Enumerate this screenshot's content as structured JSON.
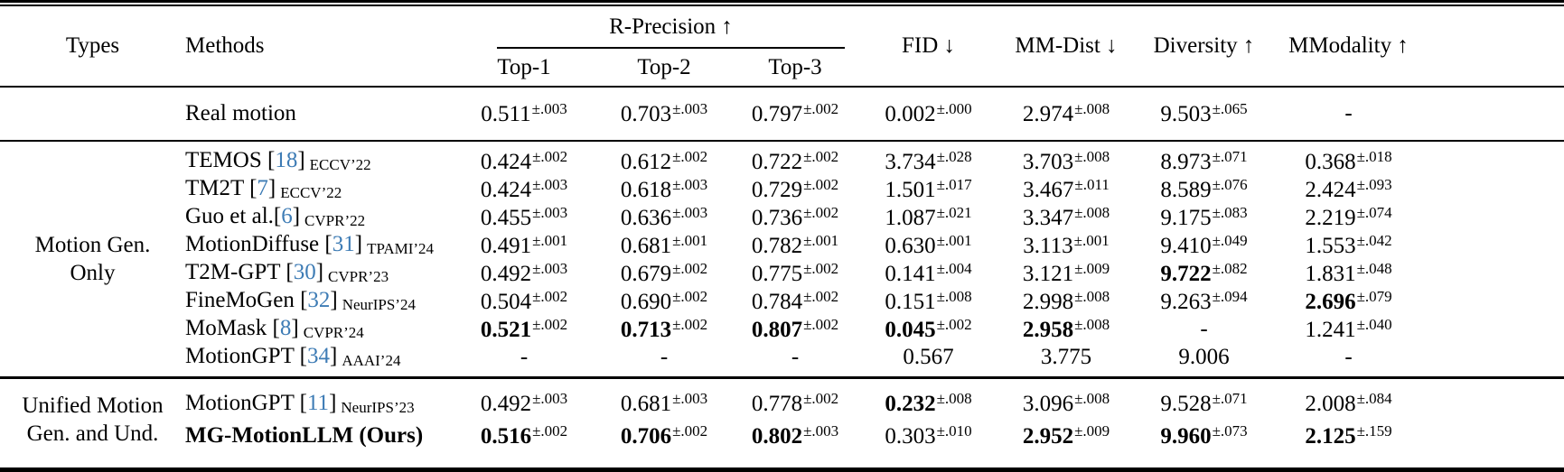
{
  "colors": {
    "citation": "#3e7cb5"
  },
  "header": {
    "types": "Types",
    "methods": "Methods",
    "r_precision": "R-Precision ↑",
    "top1": "Top-1",
    "top2": "Top-2",
    "top3": "Top-3",
    "fid": "FID ↓",
    "mm_dist": "MM-Dist ↓",
    "diversity": "Diversity ↑",
    "mmodality": "MModality ↑"
  },
  "sections": [
    {
      "id": "real",
      "type_label": "",
      "rule_after": "2",
      "rows": [
        {
          "method": {
            "name": "Real motion"
          },
          "cells": [
            {
              "v": "0.511",
              "sup": "±.003"
            },
            {
              "v": "0.703",
              "sup": "±.003"
            },
            {
              "v": "0.797",
              "sup": "±.002"
            },
            {
              "v": "0.002",
              "sup": "±.000"
            },
            {
              "v": "2.974",
              "sup": "±.008"
            },
            {
              "v": "9.503",
              "sup": "±.065"
            },
            {
              "v": "-"
            }
          ]
        }
      ]
    },
    {
      "id": "motion-gen-only",
      "type_label": "Motion Gen.\nOnly",
      "rule_after": "3",
      "rows": [
        {
          "method": {
            "name": "TEMOS",
            "cite": "18",
            "venue": "ECCV’22"
          },
          "cells": [
            {
              "v": "0.424",
              "sup": "±.002"
            },
            {
              "v": "0.612",
              "sup": "±.002"
            },
            {
              "v": "0.722",
              "sup": "±.002"
            },
            {
              "v": "3.734",
              "sup": "±.028"
            },
            {
              "v": "3.703",
              "sup": "±.008"
            },
            {
              "v": "8.973",
              "sup": "±.071"
            },
            {
              "v": "0.368",
              "sup": "±.018"
            }
          ]
        },
        {
          "method": {
            "name": "TM2T",
            "cite": "7",
            "venue": "ECCV’22"
          },
          "cells": [
            {
              "v": "0.424",
              "sup": "±.003"
            },
            {
              "v": "0.618",
              "sup": "±.003"
            },
            {
              "v": "0.729",
              "sup": "±.002"
            },
            {
              "v": "1.501",
              "sup": "±.017"
            },
            {
              "v": "3.467",
              "sup": "±.011"
            },
            {
              "v": "8.589",
              "sup": "±.076"
            },
            {
              "v": "2.424",
              "sup": "±.093"
            }
          ]
        },
        {
          "method": {
            "name": "Guo et al.",
            "cite": "6",
            "venue": "CVPR’22",
            "tight": true
          },
          "cells": [
            {
              "v": "0.455",
              "sup": "±.003"
            },
            {
              "v": "0.636",
              "sup": "±.003"
            },
            {
              "v": "0.736",
              "sup": "±.002"
            },
            {
              "v": "1.087",
              "sup": "±.021"
            },
            {
              "v": "3.347",
              "sup": "±.008"
            },
            {
              "v": "9.175",
              "sup": "±.083"
            },
            {
              "v": "2.219",
              "sup": "±.074"
            }
          ]
        },
        {
          "method": {
            "name": "MotionDiffuse",
            "cite": "31",
            "venue": "TPAMI’24"
          },
          "cells": [
            {
              "v": "0.491",
              "sup": "±.001"
            },
            {
              "v": "0.681",
              "sup": "±.001"
            },
            {
              "v": "0.782",
              "sup": "±.001"
            },
            {
              "v": "0.630",
              "sup": "±.001"
            },
            {
              "v": "3.113",
              "sup": "±.001"
            },
            {
              "v": "9.410",
              "sup": "±.049"
            },
            {
              "v": "1.553",
              "sup": "±.042"
            }
          ]
        },
        {
          "method": {
            "name": "T2M-GPT",
            "cite": "30",
            "venue": "CVPR’23"
          },
          "cells": [
            {
              "v": "0.492",
              "sup": "±.003"
            },
            {
              "v": "0.679",
              "sup": "±.002"
            },
            {
              "v": "0.775",
              "sup": "±.002"
            },
            {
              "v": "0.141",
              "sup": "±.004"
            },
            {
              "v": "3.121",
              "sup": "±.009"
            },
            {
              "v": "9.722",
              "sup": "±.082",
              "b": true
            },
            {
              "v": "1.831",
              "sup": "±.048"
            }
          ]
        },
        {
          "method": {
            "name": "FineMoGen",
            "cite": "32",
            "venue": "NeurIPS’24"
          },
          "cells": [
            {
              "v": "0.504",
              "sup": "±.002"
            },
            {
              "v": "0.690",
              "sup": "±.002"
            },
            {
              "v": "0.784",
              "sup": "±.002"
            },
            {
              "v": "0.151",
              "sup": "±.008"
            },
            {
              "v": "2.998",
              "sup": "±.008"
            },
            {
              "v": "9.263",
              "sup": "±.094"
            },
            {
              "v": "2.696",
              "sup": "±.079",
              "b": true
            }
          ]
        },
        {
          "method": {
            "name": "MoMask",
            "cite": "8",
            "venue": "CVPR’24"
          },
          "cells": [
            {
              "v": "0.521",
              "sup": "±.002",
              "b": true
            },
            {
              "v": "0.713",
              "sup": "±.002",
              "b": true
            },
            {
              "v": "0.807",
              "sup": "±.002",
              "b": true
            },
            {
              "v": "0.045",
              "sup": "±.002",
              "b": true
            },
            {
              "v": "2.958",
              "sup": "±.008",
              "b": true
            },
            {
              "v": "-"
            },
            {
              "v": "1.241",
              "sup": "±.040"
            }
          ]
        },
        {
          "method": {
            "name": "MotionGPT",
            "cite": "34",
            "venue": "AAAI’24"
          },
          "cells": [
            {
              "v": "-"
            },
            {
              "v": "-"
            },
            {
              "v": "-"
            },
            {
              "v": "0.567"
            },
            {
              "v": "3.775"
            },
            {
              "v": "9.006"
            },
            {
              "v": "-"
            }
          ]
        }
      ]
    },
    {
      "id": "unified",
      "type_label": "Unified Motion\nGen. and Und.",
      "rows": [
        {
          "method": {
            "name": "MotionGPT",
            "cite": "11",
            "venue": "NeurIPS’23"
          },
          "cells": [
            {
              "v": "0.492",
              "sup": "±.003"
            },
            {
              "v": "0.681",
              "sup": "±.003"
            },
            {
              "v": "0.778",
              "sup": "±.002"
            },
            {
              "v": "0.232",
              "sup": "±.008",
              "b": true
            },
            {
              "v": "3.096",
              "sup": "±.008"
            },
            {
              "v": "9.528",
              "sup": "±.071"
            },
            {
              "v": "2.008",
              "sup": "±.084"
            }
          ]
        },
        {
          "method": {
            "name": "MG-MotionLLM (Ours)",
            "bold": true
          },
          "cells": [
            {
              "v": "0.516",
              "sup": "±.002",
              "b": true
            },
            {
              "v": "0.706",
              "sup": "±.002",
              "b": true
            },
            {
              "v": "0.802",
              "sup": "±.003",
              "b": true
            },
            {
              "v": "0.303",
              "sup": "±.010"
            },
            {
              "v": "2.952",
              "sup": "±.009",
              "b": true
            },
            {
              "v": "9.960",
              "sup": "±.073",
              "b": true
            },
            {
              "v": "2.125",
              "sup": "±.159",
              "b": true
            }
          ]
        }
      ]
    }
  ]
}
